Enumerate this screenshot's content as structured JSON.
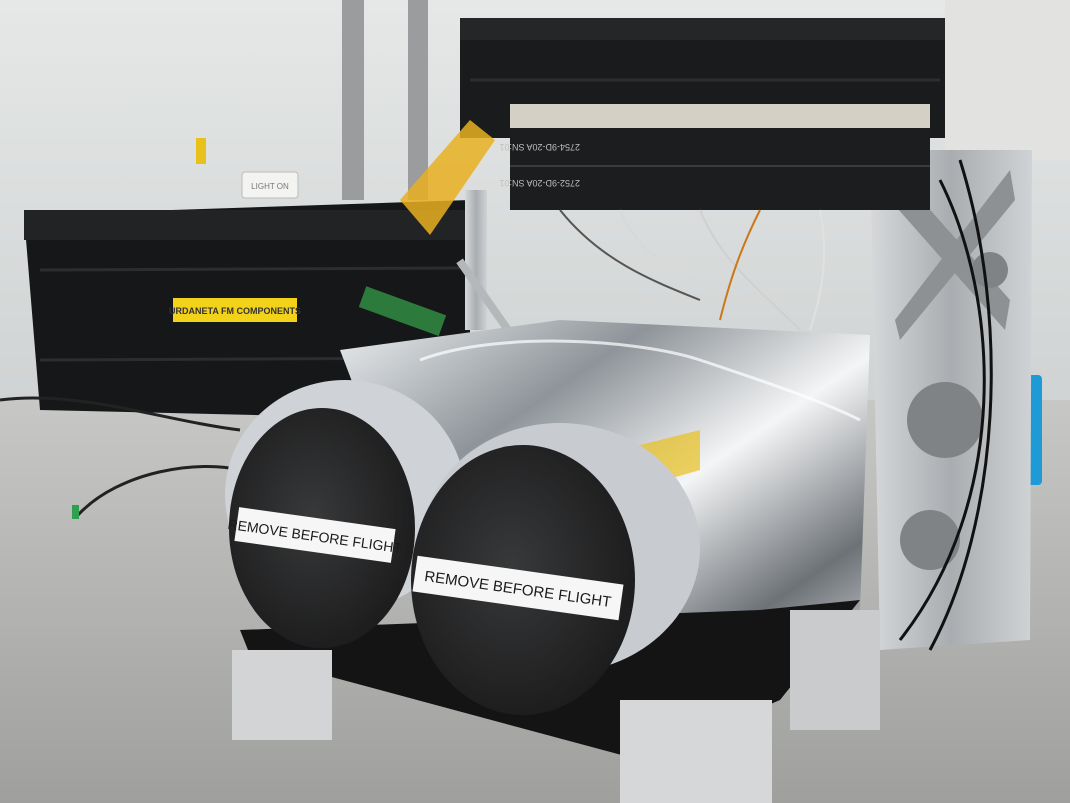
{
  "photo": {
    "crate_label": "URDANETA FM COMPONENTS",
    "connector_label_top": "2754-9D-20A  SN:01",
    "connector_label_bottom": "2752-9D-20A  SN:01",
    "wall_sign": "LIGHT ON",
    "remove_tag_left": "REMOVE BEFORE FLIGHT",
    "remove_tag_right": "REMOVE BEFORE FLIGHT"
  },
  "colors": {
    "crate": "#151617",
    "kapton_tape": "#e8b020",
    "label_yellow": "#f3d21a",
    "mli_silver": "#c8ccd0",
    "aluminum": "#b9bcbf",
    "lens_cap": "#262728"
  }
}
